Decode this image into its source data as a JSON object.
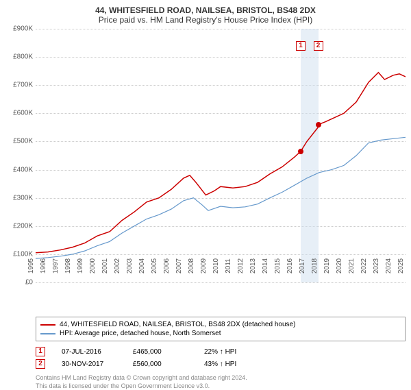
{
  "chart": {
    "type": "line",
    "title_line1": "44, WHITESFIELD ROAD, NAILSEA, BRISTOL, BS48 2DX",
    "title_line2": "Price paid vs. HM Land Registry's House Price Index (HPI)",
    "title_fontsize": 12,
    "background_color": "#ffffff",
    "ylim": [
      0,
      900000
    ],
    "ytick_step": 100000,
    "y_ticks": [
      "£0",
      "£100K",
      "£200K",
      "£300K",
      "£400K",
      "£500K",
      "£600K",
      "£700K",
      "£800K",
      "£900K"
    ],
    "xlim": [
      1995,
      2025
    ],
    "x_ticks": [
      "1995",
      "1996",
      "1997",
      "1998",
      "1999",
      "2000",
      "2001",
      "2002",
      "2003",
      "2004",
      "2005",
      "2006",
      "2007",
      "2008",
      "2009",
      "2010",
      "2011",
      "2012",
      "2013",
      "2014",
      "2015",
      "2016",
      "2017",
      "2018",
      "2019",
      "2020",
      "2021",
      "2022",
      "2023",
      "2024",
      "2025"
    ],
    "grid_color": "#cccccc",
    "series": [
      {
        "name": "property",
        "label": "44, WHITESFIELD ROAD, NAILSEA, BRISTOL, BS48 2DX (detached house)",
        "color": "#cc0000",
        "line_width": 1.5,
        "data": [
          [
            1995,
            105000
          ],
          [
            1996,
            108000
          ],
          [
            1997,
            115000
          ],
          [
            1998,
            125000
          ],
          [
            1999,
            140000
          ],
          [
            2000,
            165000
          ],
          [
            2001,
            180000
          ],
          [
            2002,
            220000
          ],
          [
            2003,
            250000
          ],
          [
            2004,
            285000
          ],
          [
            2005,
            300000
          ],
          [
            2006,
            330000
          ],
          [
            2007,
            370000
          ],
          [
            2007.5,
            380000
          ],
          [
            2008,
            355000
          ],
          [
            2008.8,
            310000
          ],
          [
            2009.5,
            325000
          ],
          [
            2010,
            340000
          ],
          [
            2011,
            335000
          ],
          [
            2012,
            340000
          ],
          [
            2013,
            355000
          ],
          [
            2014,
            385000
          ],
          [
            2015,
            410000
          ],
          [
            2016,
            445000
          ],
          [
            2016.5,
            465000
          ],
          [
            2017,
            500000
          ],
          [
            2017.9,
            550000
          ],
          [
            2017.92,
            560000
          ],
          [
            2018.5,
            570000
          ],
          [
            2019,
            580000
          ],
          [
            2020,
            600000
          ],
          [
            2021,
            640000
          ],
          [
            2022,
            710000
          ],
          [
            2022.8,
            745000
          ],
          [
            2023.3,
            720000
          ],
          [
            2024,
            735000
          ],
          [
            2024.5,
            740000
          ],
          [
            2025,
            730000
          ]
        ]
      },
      {
        "name": "hpi",
        "label": "HPI: Average price, detached house, North Somerset",
        "color": "#6699cc",
        "line_width": 1.2,
        "data": [
          [
            1995,
            85000
          ],
          [
            1996,
            88000
          ],
          [
            1997,
            93000
          ],
          [
            1998,
            100000
          ],
          [
            1999,
            112000
          ],
          [
            2000,
            130000
          ],
          [
            2001,
            145000
          ],
          [
            2002,
            175000
          ],
          [
            2003,
            200000
          ],
          [
            2004,
            225000
          ],
          [
            2005,
            240000
          ],
          [
            2006,
            260000
          ],
          [
            2007,
            290000
          ],
          [
            2007.8,
            300000
          ],
          [
            2008.5,
            275000
          ],
          [
            2009,
            255000
          ],
          [
            2010,
            270000
          ],
          [
            2011,
            265000
          ],
          [
            2012,
            268000
          ],
          [
            2013,
            278000
          ],
          [
            2014,
            300000
          ],
          [
            2015,
            320000
          ],
          [
            2016,
            345000
          ],
          [
            2017,
            370000
          ],
          [
            2018,
            390000
          ],
          [
            2019,
            400000
          ],
          [
            2020,
            415000
          ],
          [
            2021,
            450000
          ],
          [
            2022,
            495000
          ],
          [
            2023,
            505000
          ],
          [
            2024,
            510000
          ],
          [
            2025,
            515000
          ]
        ]
      }
    ],
    "marker_band": {
      "x_start": 2016.5,
      "x_end": 2017.92,
      "color": "#d0e0f0"
    },
    "sale_markers": [
      {
        "id": "1",
        "x": 2016.5,
        "y": 465000,
        "box_top": 18
      },
      {
        "id": "2",
        "x": 2017.92,
        "y": 560000,
        "box_top": 18
      }
    ]
  },
  "legend": {
    "border_color": "#999999",
    "fontsize": 10
  },
  "sales_table": {
    "rows": [
      {
        "marker": "1",
        "date": "07-JUL-2016",
        "price": "£465,000",
        "diff": "22% ↑ HPI"
      },
      {
        "marker": "2",
        "date": "30-NOV-2017",
        "price": "£560,000",
        "diff": "43% ↑ HPI"
      }
    ]
  },
  "footer": {
    "line1": "Contains HM Land Registry data © Crown copyright and database right 2024.",
    "line2": "This data is licensed under the Open Government Licence v3.0."
  }
}
